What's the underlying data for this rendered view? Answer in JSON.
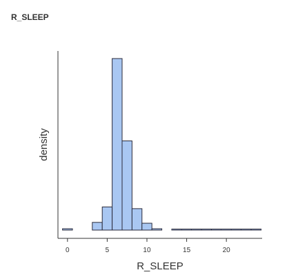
{
  "title": "R_SLEEP",
  "chart_data": {
    "type": "bar",
    "title": "R_SLEEP",
    "xlabel": "R_SLEEP",
    "ylabel": "density",
    "xlim": [
      -1.2,
      24.5
    ],
    "ylim": [
      0,
      1.0
    ],
    "xticks": [
      0,
      5,
      10,
      15,
      20
    ],
    "bin_width": 1.25,
    "bins": [
      {
        "x0": -0.625,
        "x1": 0.625,
        "density": 0.008
      },
      {
        "x0": 0.625,
        "x1": 1.875,
        "density": 0.0
      },
      {
        "x0": 1.875,
        "x1": 3.125,
        "density": 0.0
      },
      {
        "x0": 3.125,
        "x1": 4.375,
        "density": 0.045
      },
      {
        "x0": 4.375,
        "x1": 5.625,
        "density": 0.135
      },
      {
        "x0": 5.625,
        "x1": 6.875,
        "density": 1.0
      },
      {
        "x0": 6.875,
        "x1": 8.125,
        "density": 0.52
      },
      {
        "x0": 8.125,
        "x1": 9.375,
        "density": 0.125
      },
      {
        "x0": 9.375,
        "x1": 10.625,
        "density": 0.04
      },
      {
        "x0": 10.625,
        "x1": 11.875,
        "density": 0.008
      },
      {
        "x0": 11.875,
        "x1": 13.125,
        "density": 0.0
      },
      {
        "x0": 13.125,
        "x1": 14.375,
        "density": 0.003
      },
      {
        "x0": 14.375,
        "x1": 15.625,
        "density": 0.003
      },
      {
        "x0": 15.625,
        "x1": 16.875,
        "density": 0.002
      },
      {
        "x0": 16.875,
        "x1": 18.125,
        "density": 0.002
      },
      {
        "x0": 18.125,
        "x1": 19.375,
        "density": 0.002
      },
      {
        "x0": 19.375,
        "x1": 20.625,
        "density": 0.002
      },
      {
        "x0": 20.625,
        "x1": 21.875,
        "density": 0.002
      },
      {
        "x0": 21.875,
        "x1": 23.125,
        "density": 0.002
      },
      {
        "x0": 23.125,
        "x1": 24.375,
        "density": 0.002
      }
    ],
    "bar_fill": "#a9c7f2",
    "bar_stroke": "#2a2a3a",
    "axis_color": "#333333",
    "grid": false,
    "legend": "none"
  }
}
